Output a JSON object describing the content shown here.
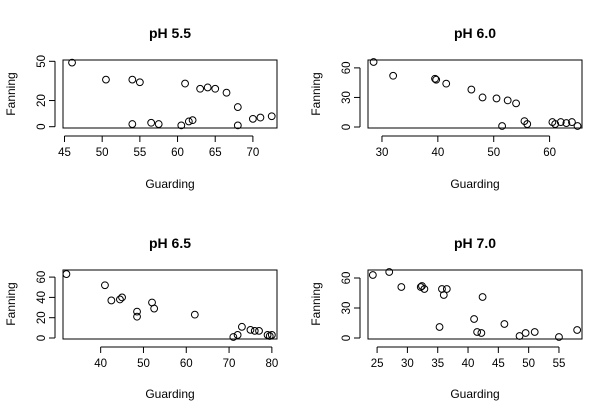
{
  "chart_data": [
    {
      "type": "scatter",
      "title": "pH 5.5",
      "xlabel": "Guarding",
      "ylabel": "Fanning",
      "xlim": [
        44.8,
        73.2
      ],
      "ylim": [
        -1,
        51
      ],
      "xticks": [
        45,
        50,
        55,
        60,
        65,
        70
      ],
      "yticks": [
        0,
        20,
        50
      ],
      "x": [
        46,
        50.5,
        54,
        55,
        56.5,
        57.5,
        54,
        60.5,
        61,
        61.5,
        62,
        63,
        64,
        65,
        66.5,
        68,
        68,
        70,
        71,
        72.5
      ],
      "y": [
        49,
        36,
        36,
        34,
        3,
        2,
        2,
        1,
        33,
        4,
        5,
        29,
        30,
        29,
        26,
        1,
        15,
        6,
        7,
        8
      ]
    },
    {
      "type": "scatter",
      "title": "pH 6.0",
      "xlabel": "Guarding",
      "ylabel": "Fanning",
      "xlim": [
        27.5,
        65.8
      ],
      "ylim": [
        -1,
        68
      ],
      "xticks": [
        30,
        40,
        50,
        60
      ],
      "yticks": [
        0,
        30,
        60
      ],
      "x": [
        28.5,
        32,
        39.5,
        39.7,
        41.5,
        46,
        48,
        50.5,
        51.5,
        52.5,
        54,
        55.5,
        56,
        60.5,
        61,
        62,
        63,
        64,
        65
      ],
      "y": [
        66,
        52,
        49,
        48,
        44,
        38,
        30,
        29,
        1,
        27,
        24,
        6,
        3,
        5,
        3,
        5,
        4,
        5,
        1
      ]
    },
    {
      "type": "scatter",
      "title": "pH 6.5",
      "xlabel": "Guarding",
      "ylabel": "Fanning",
      "xlim": [
        31.2,
        81.2
      ],
      "ylim": [
        -1,
        67
      ],
      "xticks": [
        40,
        50,
        60,
        70,
        80
      ],
      "yticks": [
        0,
        20,
        40,
        60
      ],
      "x": [
        32,
        41,
        42.5,
        44.5,
        45,
        48.5,
        48.5,
        52,
        52.5,
        62,
        71,
        72,
        73,
        75,
        76,
        77,
        79,
        79.5,
        80
      ],
      "y": [
        63,
        52,
        37,
        38,
        40,
        26,
        21,
        35,
        29,
        23,
        1,
        3,
        11,
        8,
        7,
        7,
        3,
        2,
        3
      ]
    },
    {
      "type": "scatter",
      "title": "pH 7.0",
      "xlabel": "Guarding",
      "ylabel": "Fanning",
      "xlim": [
        23.5,
        58.8
      ],
      "ylim": [
        -1,
        68
      ],
      "xticks": [
        25,
        30,
        35,
        40,
        45,
        50,
        55
      ],
      "yticks": [
        0,
        30,
        60
      ],
      "x": [
        24.3,
        27,
        29,
        32.2,
        32.4,
        32.8,
        35.3,
        35.7,
        36,
        36.5,
        41,
        41.5,
        42.2,
        42.4,
        46,
        48.5,
        49.5,
        51,
        55,
        58
      ],
      "y": [
        63,
        66,
        51,
        51,
        52,
        49,
        11,
        49,
        43,
        49,
        19,
        6,
        5,
        41,
        14,
        2,
        5,
        6,
        1,
        8
      ]
    }
  ]
}
